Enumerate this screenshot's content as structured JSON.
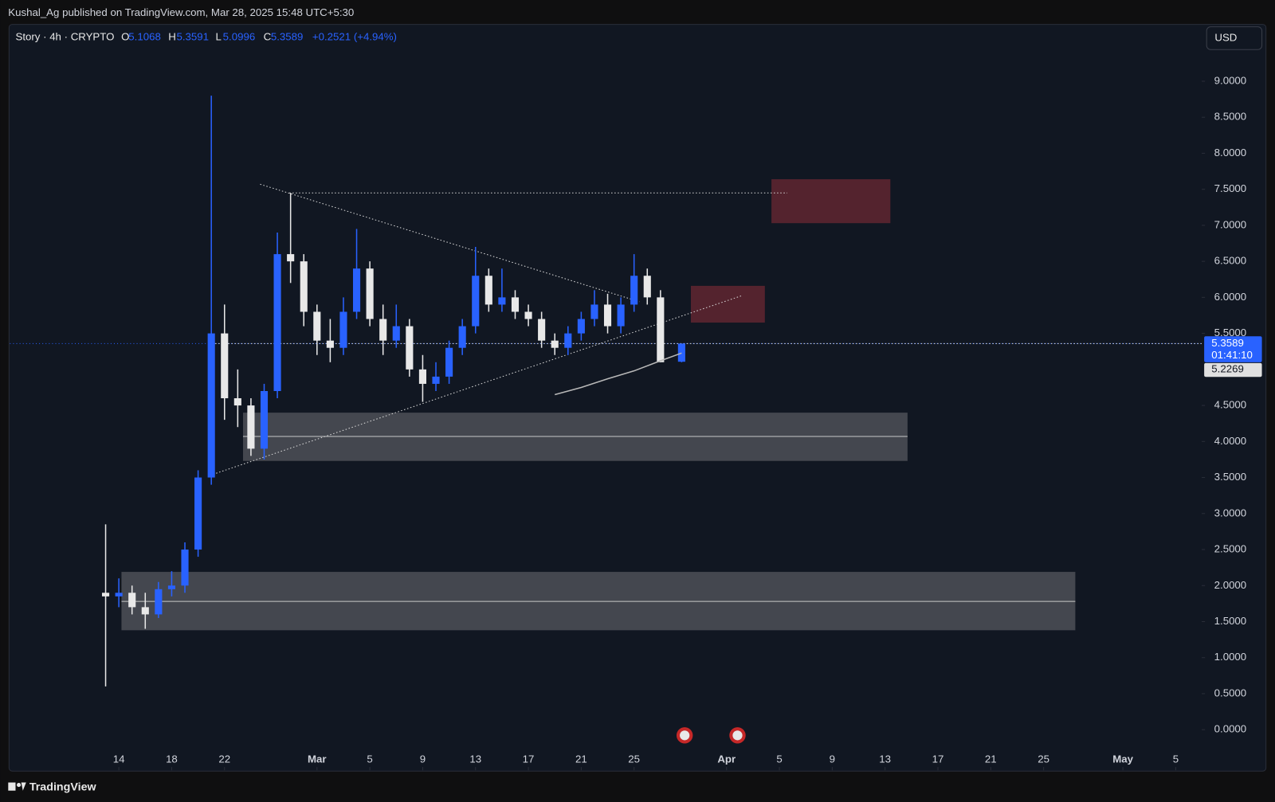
{
  "chart_data": {
    "type": "candlestick",
    "header": "Kushal_Ag published on TradingView.com, Mar 28, 2025 15:48 UTC+5:30",
    "symbol": "Story · 4h · CRYPTO",
    "legend_keys": [
      "O",
      "H",
      "L",
      "C"
    ],
    "change": "+0.2521 (+4.94%)",
    "currency": "USD",
    "countdown": "01:41:10",
    "footer": "TradingView",
    "up_color": "#2962ff",
    "down_color": "#e8e8e8",
    "x": [
      44,
      45,
      46,
      47,
      48,
      49,
      50,
      51,
      52,
      53,
      54,
      55,
      56,
      57,
      58,
      59,
      60,
      61,
      62,
      63,
      64,
      65,
      66,
      67,
      68,
      69,
      70,
      71,
      72,
      73,
      74,
      75,
      76,
      77,
      78,
      79,
      80,
      81,
      82,
      83,
      84,
      85,
      86,
      87.6
    ],
    "open": [
      1.9,
      1.85,
      1.9,
      1.7,
      1.6,
      1.95,
      2.0,
      2.5,
      3.5,
      5.5,
      4.6,
      4.5,
      3.9,
      4.7,
      6.6,
      6.5,
      5.8,
      5.4,
      5.3,
      5.8,
      6.4,
      5.7,
      5.4,
      5.6,
      5.0,
      4.8,
      4.9,
      5.3,
      5.6,
      6.3,
      5.9,
      6.0,
      5.8,
      5.7,
      5.4,
      5.3,
      5.5,
      5.7,
      5.9,
      5.6,
      5.9,
      6.3,
      6.0,
      5.1068
    ],
    "high": [
      2.85,
      2.1,
      2.0,
      1.9,
      2.05,
      2.2,
      2.6,
      3.6,
      8.8,
      5.9,
      5.0,
      4.6,
      4.8,
      6.9,
      7.45,
      6.6,
      5.9,
      5.7,
      6.0,
      6.95,
      6.5,
      5.9,
      5.9,
      5.7,
      5.2,
      5.1,
      5.4,
      5.7,
      6.7,
      6.4,
      6.4,
      6.1,
      5.9,
      5.8,
      5.5,
      5.6,
      5.8,
      6.1,
      6.05,
      6.0,
      6.6,
      6.4,
      6.1,
      5.3591
    ],
    "low": [
      0.6,
      1.7,
      1.6,
      1.4,
      1.55,
      1.85,
      1.9,
      2.4,
      3.4,
      4.3,
      4.2,
      3.8,
      3.75,
      4.6,
      6.2,
      5.6,
      5.2,
      5.1,
      5.2,
      5.7,
      5.6,
      5.2,
      5.3,
      4.9,
      4.55,
      4.7,
      4.8,
      5.2,
      5.5,
      5.8,
      5.8,
      5.7,
      5.6,
      5.3,
      5.2,
      5.2,
      5.4,
      5.6,
      5.5,
      5.5,
      5.8,
      5.9,
      5.1,
      5.0996
    ],
    "close": [
      1.85,
      1.9,
      1.7,
      1.6,
      1.95,
      2.0,
      2.5,
      3.5,
      5.5,
      4.6,
      4.5,
      3.9,
      4.7,
      6.6,
      6.5,
      5.8,
      5.4,
      5.3,
      5.8,
      6.4,
      5.7,
      5.4,
      5.6,
      5.0,
      4.8,
      4.9,
      5.3,
      5.6,
      6.3,
      5.9,
      6.0,
      5.8,
      5.7,
      5.4,
      5.3,
      5.5,
      5.7,
      5.9,
      5.6,
      5.9,
      6.3,
      6.0,
      5.1,
      5.3589
    ],
    "ma": {
      "color": "#b8b8b8",
      "x": [
        78,
        80,
        82,
        84,
        86,
        87.6
      ],
      "values": [
        4.65,
        4.75,
        4.87,
        4.98,
        5.12,
        5.2269
      ]
    },
    "zones": [
      {
        "color": "#5c2530",
        "x": [
          94.4,
          103.4
        ],
        "y": [
          7.03,
          7.64
        ]
      },
      {
        "color": "#5c2530",
        "x": [
          88.3,
          93.9
        ],
        "y": [
          5.65,
          6.16
        ]
      },
      {
        "color": "#4a4d54",
        "x": [
          54.4,
          104.7
        ],
        "y": [
          3.73,
          4.4
        ],
        "mid": 4.07
      },
      {
        "color": "#4a4d54",
        "x": [
          45.2,
          117.4
        ],
        "y": [
          1.38,
          2.19
        ],
        "mid": 1.78
      }
    ],
    "lines": [
      {
        "x": [
          55.7,
          84.4
        ],
        "y": [
          7.57,
          5.94
        ]
      },
      {
        "x": [
          57.9,
          95.6
        ],
        "y": [
          7.45,
          7.45
        ]
      },
      {
        "x": [
          51.9,
          92.1
        ],
        "y": [
          3.53,
          6.02
        ]
      },
      {
        "x": [
          52.3,
          127
        ],
        "y": [
          5.3589,
          5.3589
        ]
      }
    ],
    "xlim": [
      36.75,
      126.97
    ],
    "ylim": [
      -0.564,
      9.789
    ],
    "xticks": [
      {
        "value": 45,
        "label": "14"
      },
      {
        "value": 49,
        "label": "18"
      },
      {
        "value": 53,
        "label": "22"
      },
      {
        "value": 60,
        "label": "Mar"
      },
      {
        "value": 64,
        "label": "5"
      },
      {
        "value": 68,
        "label": "9"
      },
      {
        "value": 72,
        "label": "13"
      },
      {
        "value": 76,
        "label": "17"
      },
      {
        "value": 80,
        "label": "21"
      },
      {
        "value": 84,
        "label": "25"
      },
      {
        "value": 91,
        "label": "Apr"
      },
      {
        "value": 95,
        "label": "5"
      },
      {
        "value": 99,
        "label": "9"
      },
      {
        "value": 103,
        "label": "13"
      },
      {
        "value": 107,
        "label": "17"
      },
      {
        "value": 111,
        "label": "21"
      },
      {
        "value": 115,
        "label": "25"
      },
      {
        "value": 121,
        "label": "May"
      },
      {
        "value": 125,
        "label": "5"
      }
    ],
    "yticks": [
      {
        "value": 0,
        "label": "0.0000"
      },
      {
        "value": 0.5,
        "label": "0.5000"
      },
      {
        "value": 1,
        "label": "1.0000"
      },
      {
        "value": 1.5,
        "label": "1.5000"
      },
      {
        "value": 2,
        "label": "2.0000"
      },
      {
        "value": 2.5,
        "label": "2.5000"
      },
      {
        "value": 3,
        "label": "3.0000"
      },
      {
        "value": 3.5,
        "label": "3.5000"
      },
      {
        "value": 4,
        "label": "4.0000"
      },
      {
        "value": 4.5,
        "label": "4.5000"
      },
      {
        "value": 5.5,
        "label": "5.5000"
      },
      {
        "value": 6,
        "label": "6.0000"
      },
      {
        "value": 6.5,
        "label": "6.5000"
      },
      {
        "value": 7,
        "label": "7.0000"
      },
      {
        "value": 7.5,
        "label": "7.5000"
      },
      {
        "value": 8,
        "label": "8.0000"
      },
      {
        "value": 8.5,
        "label": "8.5000"
      },
      {
        "value": 9,
        "label": "9.0000"
      }
    ]
  }
}
